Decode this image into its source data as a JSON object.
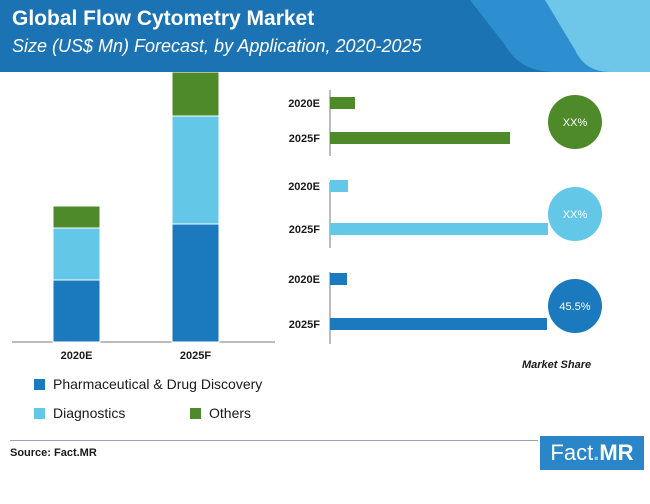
{
  "header": {
    "title": "Global Flow Cytometry Market",
    "subtitle": "Size (US$ Mn) Forecast, by Application, 2020-2025"
  },
  "colors": {
    "header_dark": "#1b73b3",
    "header_light": "#6ec6e8",
    "pharma": "#1b79bd",
    "diagnostics": "#63c7e8",
    "others": "#4f8a2a",
    "axis": "#7a7a7a"
  },
  "legend": {
    "pharma": "Pharmaceutical & Drug Discovery",
    "diagnostics": "Diagnostics",
    "others": "Others"
  },
  "chart_data": [
    {
      "type": "bar",
      "stacked": true,
      "categories": [
        "2020E",
        "2025F"
      ],
      "series": [
        {
          "name": "Pharmaceutical & Drug Discovery",
          "values": [
            62,
            118
          ]
        },
        {
          "name": "Diagnostics",
          "values": [
            52,
            108
          ]
        },
        {
          "name": "Others",
          "values": [
            22,
            44
          ]
        }
      ]
    },
    {
      "type": "bar",
      "orientation": "horizontal",
      "xlabel": "Market Share",
      "groups": [
        {
          "series": "Others",
          "categories": [
            "2020E",
            "2025F"
          ],
          "values": [
            25,
            180
          ],
          "share": "XX%"
        },
        {
          "series": "Diagnostics",
          "categories": [
            "2020E",
            "2025F"
          ],
          "values": [
            18,
            218
          ],
          "share": "XX%"
        },
        {
          "series": "Pharmaceutical & Drug Discovery",
          "categories": [
            "2020E",
            "2025F"
          ],
          "values": [
            17,
            217
          ],
          "share": "45.5%"
        }
      ]
    }
  ],
  "footer": {
    "source": "Source: Fact.MR",
    "logo_text": "Fact",
    "logo_dot": ".",
    "logo_mr": "MR"
  }
}
